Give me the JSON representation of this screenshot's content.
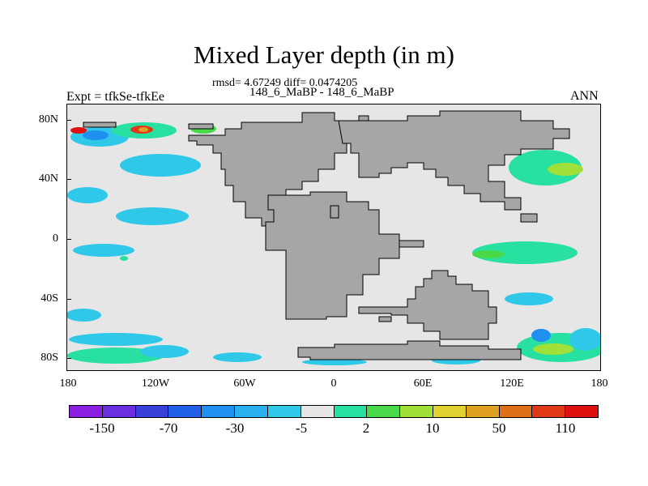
{
  "header": {
    "title": "Mixed Layer depth (in m)",
    "rmsd_line": "rmsd= 4.67249 diff= 0.0474205",
    "cases_line": "148_6_MaBP - 148_6_MaBP",
    "left_label": "Expt = tfkSe-tfkEe",
    "right_label": "ANN"
  },
  "axes": {
    "y_labels": [
      "80N",
      "40N",
      "0",
      "40S",
      "80S"
    ],
    "x_labels": [
      "180",
      "120W",
      "60W",
      "0",
      "60E",
      "120E",
      "180"
    ]
  },
  "colorbar": {
    "colors": [
      "#8a1fe0",
      "#6a2fe0",
      "#3a3fd8",
      "#1f5fe8",
      "#1f8ff0",
      "#28b0f0",
      "#30c8e8",
      "#e6e6e6",
      "#28e0a0",
      "#48d848",
      "#a0e038",
      "#e0d030",
      "#e0a020",
      "#e07018",
      "#e03818",
      "#e01010"
    ],
    "labels": [
      "-150",
      "-70",
      "-30",
      "-5",
      "2",
      "10",
      "50",
      "110"
    ]
  },
  "map_colors": {
    "land": "#a6a6a6",
    "ocean_background": "#e6e6e6"
  }
}
